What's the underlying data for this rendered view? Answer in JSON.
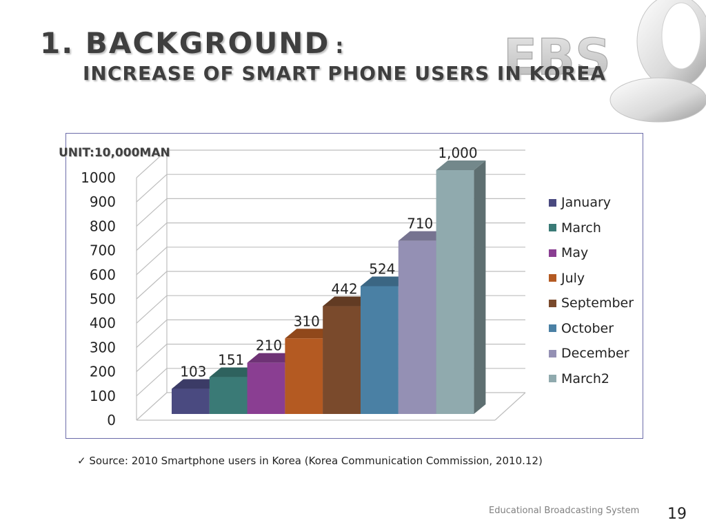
{
  "slide": {
    "title_main": "1. BACKGROUND",
    "title_colon": ":",
    "title_sub": "INCREASE OF SMART PHONE USERS IN KOREA",
    "unit_label": "UNIT:10,000MAN",
    "source_check": "✓",
    "source_text": "Source: 2010 Smartphone users in Korea (Korea Communication Commission, 2010.12)",
    "footer_text": "Educational Broadcasting System",
    "page_number": "19",
    "logo_text": "EBS"
  },
  "chart_data": {
    "type": "bar",
    "categories": [
      "January",
      "March",
      "May",
      "July",
      "September",
      "October",
      "December",
      "March2"
    ],
    "values": [
      103,
      151,
      210,
      310,
      442,
      524,
      710,
      1000
    ],
    "data_labels": [
      "103",
      "151",
      "210",
      "310",
      "442",
      "524",
      "710",
      "1,000"
    ],
    "colors": [
      "#4a4a80",
      "#3a7a76",
      "#8a3e92",
      "#b45a22",
      "#7a4a2c",
      "#4a80a4",
      "#9490b4",
      "#90aaae"
    ],
    "yticks": [
      "0",
      "100",
      "200",
      "300",
      "400",
      "500",
      "600",
      "700",
      "800",
      "900",
      "1000"
    ],
    "ylim": [
      0,
      1000
    ],
    "three_d": true,
    "grid": true,
    "legend_position": "right"
  }
}
